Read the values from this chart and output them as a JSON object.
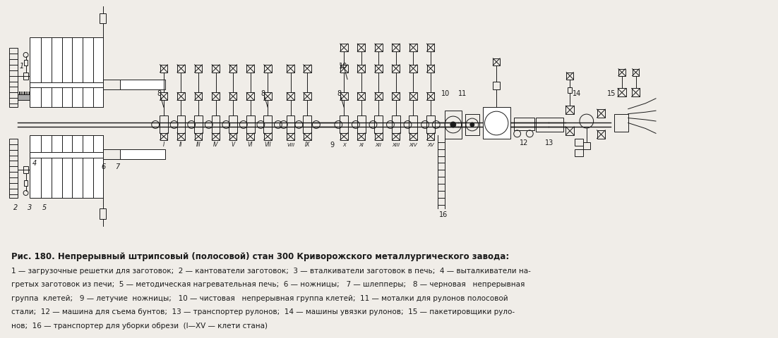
{
  "bg_color": "#f0ede8",
  "line_color": "#1a1a1a",
  "title_line": "Рис. 180. Непрерывный штрипсовый (полосовой) стан 300 Криворожского металлургического завода:",
  "caption_lines": [
    "1 — загрузочные решетки для заготовок;  2 — кантователи заготовок;  3 — вталкиватели заготовок в печь;  4 — выталкиватели на-",
    "гретых заготовок из печи;  5 — методическая нагревательная печь;  6 — ножницы;   7 — шлепперы;   8 — черновая   непрерывная",
    "группа  клетей;   9 — летучие  ножницы;   10 — чистовая   непрерывная группа клетей;  11 — моталки для рулонов полосовой",
    "стали;  12 — машина для съема бунтов;  13 — транспортер рулонов;  14 — машины увязки рулонов;  15 — пакетировщики руло-",
    "нов;  16 — транспортер для уборки обрези  (I—XV — клети стана)"
  ],
  "figsize": [
    11.02,
    4.81
  ],
  "dpi": 100
}
